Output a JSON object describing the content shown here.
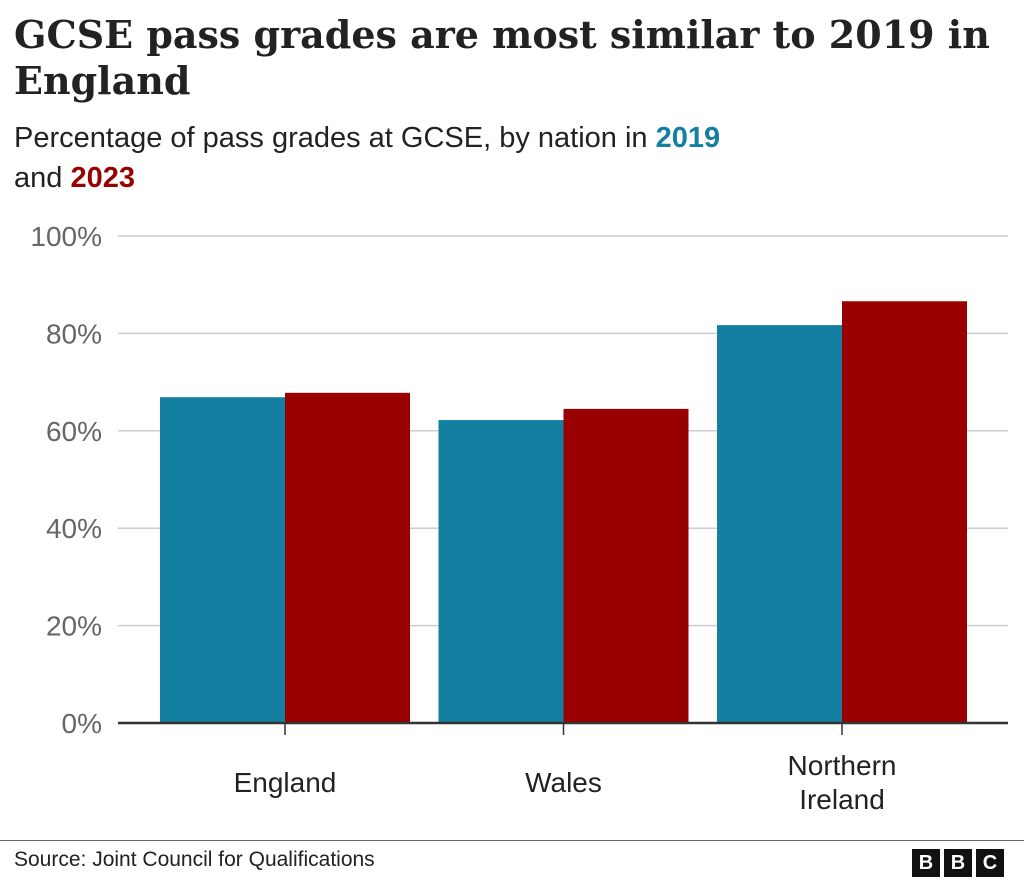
{
  "title": "GCSE pass grades are most similar to 2019 in England",
  "subtitle": {
    "prefix": "Percentage of pass grades at GCSE, by nation in ",
    "year1": "2019",
    "middle": " and ",
    "year2": "2023"
  },
  "source": "Source: Joint Council for Qualifications",
  "logo": "BBC",
  "colors": {
    "2019": "#1380a1",
    "2023": "#990000"
  },
  "chart_data": {
    "type": "bar",
    "categories": [
      "England",
      "Wales",
      "Northern Ireland"
    ],
    "series": [
      {
        "name": "2019",
        "values": [
          66.9,
          62.2,
          81.7
        ],
        "color": "#1380a1"
      },
      {
        "name": "2023",
        "values": [
          67.8,
          64.5,
          86.6
        ],
        "color": "#990000"
      }
    ],
    "ylim": [
      0,
      100
    ],
    "yticks": [
      "0%",
      "20%",
      "40%",
      "60%",
      "80%",
      "100%"
    ],
    "ytick_values": [
      0,
      20,
      40,
      60,
      80,
      100
    ],
    "grid": true,
    "legend": "in subtitle"
  }
}
